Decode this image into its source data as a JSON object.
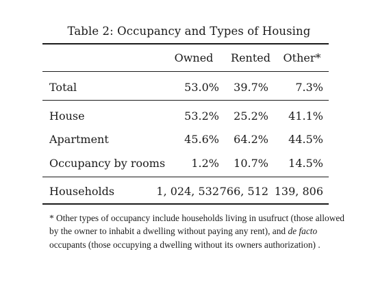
{
  "caption": "Table 2: Occupancy and Types of Housing",
  "columns": {
    "owned": "Owned",
    "rented": "Rented",
    "other": "Other*"
  },
  "rows": [
    {
      "label": "Total",
      "owned": "53.0%",
      "rented": "39.7%",
      "other": "7.3%"
    },
    {
      "label": "House",
      "owned": "53.2%",
      "rented": "25.2%",
      "other": "41.1%"
    },
    {
      "label": "Apartment",
      "owned": "45.6%",
      "rented": "64.2%",
      "other": "44.5%"
    },
    {
      "label": "Occupancy by rooms",
      "owned": "1.2%",
      "rented": "10.7%",
      "other": "14.5%"
    },
    {
      "label": "Households",
      "owned": "1, 024, 532",
      "rented": "766, 512",
      "other": "139, 806"
    }
  ],
  "footnote": {
    "part1": "* Other types of occupancy include households living in usufruct (those allowed by the owner to inhabit a dwelling without paying any rent), and ",
    "italic": "de facto",
    "part2": " occupants (those occupying a dwelling without its owners authorization) ."
  }
}
